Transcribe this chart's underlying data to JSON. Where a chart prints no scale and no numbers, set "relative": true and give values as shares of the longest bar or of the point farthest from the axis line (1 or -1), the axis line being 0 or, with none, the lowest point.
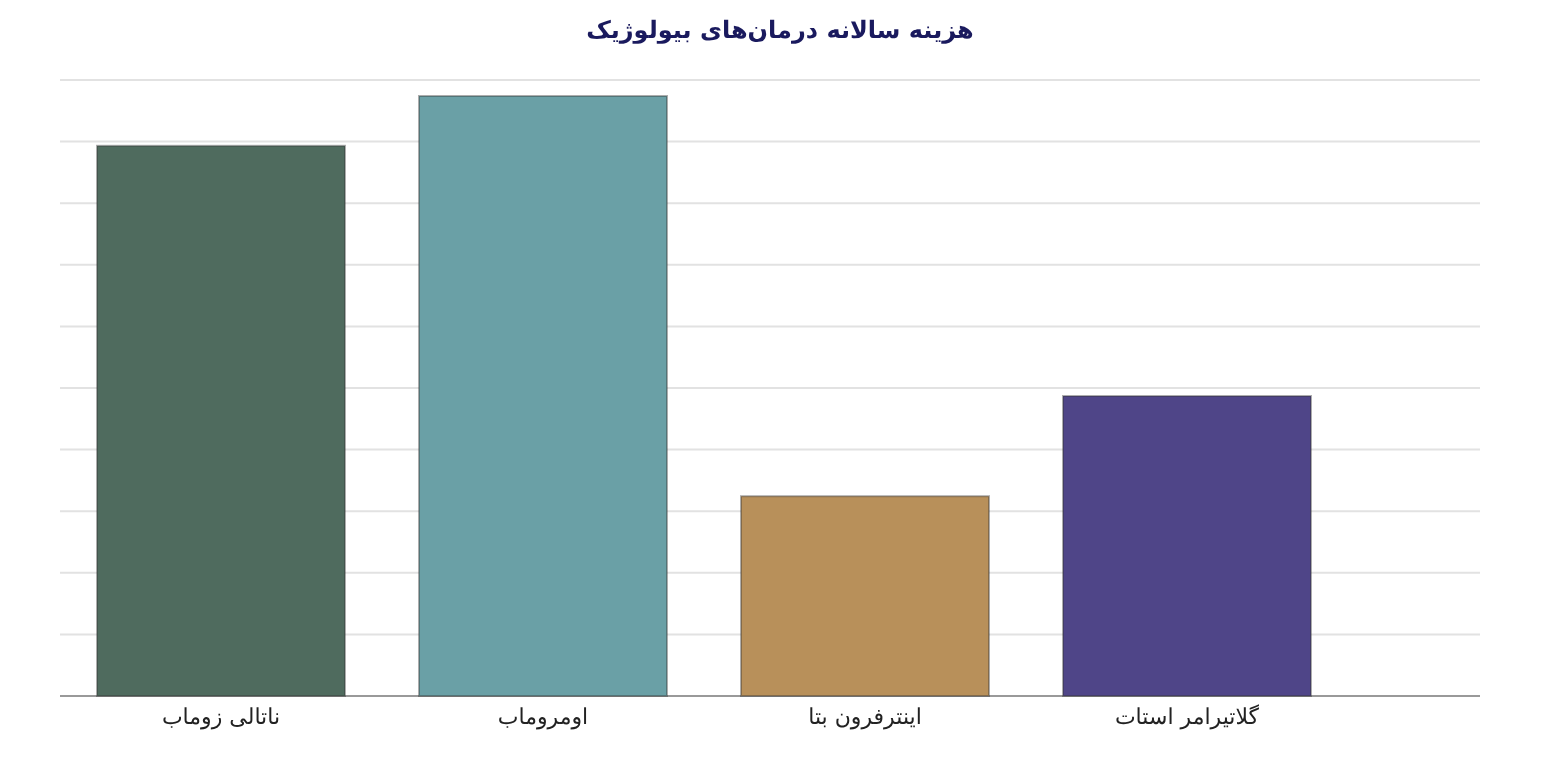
{
  "chart_data": {
    "type": "bar",
    "title": "هزینه سالانه درمان‌های بیولوژیک",
    "relative": true,
    "grid": "y",
    "categories": [
      "ناتالی زوماب",
      "اومروماب",
      "اینترفرون بتا",
      "گلاتیرامر استات"
    ],
    "values": [
      0.917,
      1,
      0.333,
      0.5
    ],
    "colors": [
      "#4f6b5e",
      "#6aa0a6",
      "#b8905a",
      "#4f4588"
    ]
  }
}
